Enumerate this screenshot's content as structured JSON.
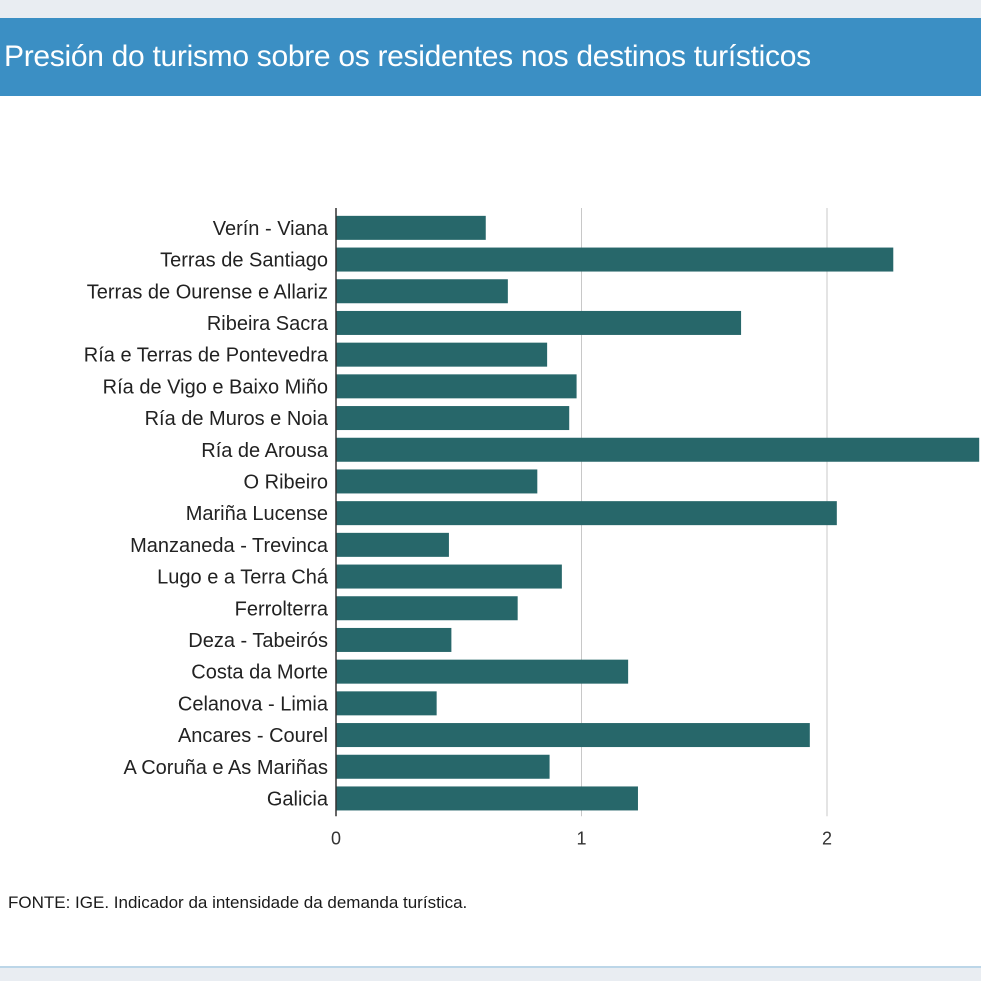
{
  "header": {
    "title": "Presión do turismo sobre os residentes nos destinos turísticos"
  },
  "footer": {
    "source": "FONTE: IGE. Indicador da intensidade da demanda turística."
  },
  "colors": {
    "header_bg": "#3b8fc4",
    "bar": "#27676a",
    "grid": "#c8c8c8",
    "axis": "#333333"
  },
  "chart_data": {
    "type": "bar",
    "orientation": "horizontal",
    "categories": [
      "Verín - Viana",
      "Terras de Santiago",
      "Terras de Ourense e Allariz",
      "Ribeira Sacra",
      "Ría e Terras de Pontevedra",
      "Ría de Vigo e Baixo Miño",
      "Ría de Muros e Noia",
      "Ría de Arousa",
      "O Ribeiro",
      "Mariña Lucense",
      "Manzaneda - Trevinca",
      "Lugo e a Terra Chá",
      "Ferrolterra",
      "Deza - Tabeirós",
      "Costa da Morte",
      "Celanova - Limia",
      "Ancares - Courel",
      "A Coruña e As Mariñas",
      "Galicia"
    ],
    "values": [
      0.61,
      2.27,
      0.7,
      1.65,
      0.86,
      0.98,
      0.95,
      2.7,
      0.82,
      2.04,
      0.46,
      0.92,
      0.74,
      0.47,
      1.19,
      0.41,
      1.93,
      0.87,
      1.23
    ],
    "x_ticks": [
      "0",
      "1",
      "2"
    ],
    "xlim": [
      0,
      2.62
    ],
    "title": "",
    "xlabel": "",
    "ylabel": "",
    "grid": "vertical"
  }
}
